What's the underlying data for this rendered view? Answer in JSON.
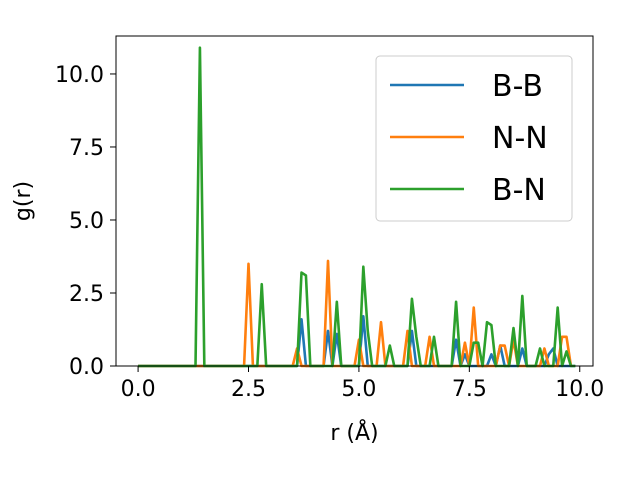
{
  "chart_data": {
    "type": "line",
    "xlabel": "r (Å)",
    "ylabel": "g(r)",
    "xlim": [
      -0.5,
      10.3
    ],
    "ylim": [
      0,
      11.3
    ],
    "xticks": [
      0.0,
      2.5,
      5.0,
      7.5,
      10.0
    ],
    "xtick_labels": [
      "0.0",
      "2.5",
      "5.0",
      "7.5",
      "10.0"
    ],
    "yticks": [
      0.0,
      2.5,
      5.0,
      7.5,
      10.0
    ],
    "ytick_labels": [
      "0.0",
      "2.5",
      "5.0",
      "7.5",
      "10.0"
    ],
    "grid": false,
    "legend_position": "top-right",
    "series": [
      {
        "name": "B-B",
        "color": "#1f77b4",
        "points": [
          [
            0.0,
            0
          ],
          [
            3.6,
            0
          ],
          [
            3.7,
            1.6
          ],
          [
            3.8,
            0
          ],
          [
            4.2,
            0
          ],
          [
            4.3,
            1.2
          ],
          [
            4.4,
            0
          ],
          [
            4.5,
            1.1
          ],
          [
            4.6,
            0
          ],
          [
            5.0,
            0
          ],
          [
            5.1,
            1.7
          ],
          [
            5.2,
            0
          ],
          [
            6.1,
            0
          ],
          [
            6.2,
            1.2
          ],
          [
            6.3,
            0
          ],
          [
            7.1,
            0
          ],
          [
            7.2,
            0.9
          ],
          [
            7.3,
            0
          ],
          [
            7.4,
            0.4
          ],
          [
            7.5,
            0
          ],
          [
            7.9,
            0
          ],
          [
            8.0,
            0.4
          ],
          [
            8.1,
            0
          ],
          [
            8.2,
            0.7
          ],
          [
            8.3,
            0
          ],
          [
            8.6,
            0
          ],
          [
            8.7,
            0.6
          ],
          [
            8.8,
            0
          ],
          [
            9.2,
            0
          ],
          [
            9.3,
            0.4
          ],
          [
            9.4,
            0.6
          ],
          [
            9.5,
            0
          ],
          [
            9.9,
            0
          ]
        ]
      },
      {
        "name": "N-N",
        "color": "#ff7f0e",
        "points": [
          [
            0.0,
            0
          ],
          [
            2.4,
            0
          ],
          [
            2.5,
            3.5
          ],
          [
            2.6,
            0
          ],
          [
            3.5,
            0
          ],
          [
            3.6,
            0.6
          ],
          [
            3.7,
            0
          ],
          [
            4.2,
            0
          ],
          [
            4.3,
            3.6
          ],
          [
            4.4,
            0
          ],
          [
            4.9,
            0
          ],
          [
            5.0,
            0.9
          ],
          [
            5.1,
            0
          ],
          [
            5.4,
            0
          ],
          [
            5.5,
            1.5
          ],
          [
            5.6,
            0
          ],
          [
            6.0,
            0
          ],
          [
            6.1,
            1.2
          ],
          [
            6.2,
            0
          ],
          [
            6.5,
            0
          ],
          [
            6.6,
            1.0
          ],
          [
            6.7,
            0
          ],
          [
            7.3,
            0
          ],
          [
            7.4,
            0.8
          ],
          [
            7.5,
            0
          ],
          [
            7.6,
            2.0
          ],
          [
            7.7,
            0
          ],
          [
            8.1,
            0
          ],
          [
            8.2,
            0.7
          ],
          [
            8.3,
            0.7
          ],
          [
            8.4,
            0
          ],
          [
            8.5,
            0.9
          ],
          [
            8.6,
            0
          ],
          [
            9.1,
            0
          ],
          [
            9.2,
            0.6
          ],
          [
            9.3,
            0
          ],
          [
            9.5,
            0
          ],
          [
            9.6,
            1.0
          ],
          [
            9.7,
            1.0
          ],
          [
            9.8,
            0
          ]
        ]
      },
      {
        "name": "B-N",
        "color": "#2ca02c",
        "points": [
          [
            0.0,
            0
          ],
          [
            1.3,
            0
          ],
          [
            1.4,
            10.9
          ],
          [
            1.5,
            0
          ],
          [
            2.7,
            0
          ],
          [
            2.8,
            2.8
          ],
          [
            2.9,
            0
          ],
          [
            3.6,
            0
          ],
          [
            3.7,
            3.2
          ],
          [
            3.8,
            3.1
          ],
          [
            3.9,
            0
          ],
          [
            4.4,
            0
          ],
          [
            4.5,
            2.2
          ],
          [
            4.6,
            0
          ],
          [
            5.0,
            0
          ],
          [
            5.1,
            3.4
          ],
          [
            5.2,
            1.2
          ],
          [
            5.3,
            0
          ],
          [
            5.6,
            0
          ],
          [
            5.7,
            0.7
          ],
          [
            5.8,
            0
          ],
          [
            6.1,
            0
          ],
          [
            6.2,
            2.3
          ],
          [
            6.3,
            1.0
          ],
          [
            6.4,
            0
          ],
          [
            6.6,
            0
          ],
          [
            6.7,
            1.0
          ],
          [
            6.8,
            0
          ],
          [
            7.1,
            0
          ],
          [
            7.2,
            2.2
          ],
          [
            7.3,
            0
          ],
          [
            7.5,
            0
          ],
          [
            7.6,
            0.8
          ],
          [
            7.7,
            0.8
          ],
          [
            7.8,
            0
          ],
          [
            7.9,
            1.5
          ],
          [
            8.0,
            1.4
          ],
          [
            8.1,
            0
          ],
          [
            8.4,
            0
          ],
          [
            8.5,
            1.3
          ],
          [
            8.6,
            0
          ],
          [
            8.7,
            2.4
          ],
          [
            8.8,
            0
          ],
          [
            9.0,
            0
          ],
          [
            9.1,
            0.6
          ],
          [
            9.2,
            0
          ],
          [
            9.4,
            0
          ],
          [
            9.5,
            2.0
          ],
          [
            9.6,
            0
          ],
          [
            9.7,
            0.5
          ],
          [
            9.8,
            0
          ],
          [
            9.9,
            0
          ]
        ]
      }
    ]
  }
}
